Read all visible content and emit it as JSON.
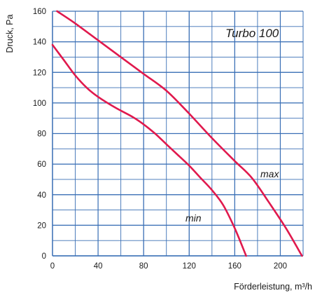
{
  "chart_data": {
    "type": "line",
    "title": "Turbo 100",
    "xlabel": "Förderleistung, m³/h",
    "ylabel": "Druck, Pa",
    "xlim": [
      0,
      220
    ],
    "ylim": [
      0,
      160
    ],
    "x_ticks": [
      0,
      40,
      80,
      120,
      160,
      200
    ],
    "y_ticks": [
      0,
      20,
      40,
      60,
      80,
      100,
      120,
      140,
      160
    ],
    "grid": true,
    "x_minor_step": 20,
    "y_minor_step": 10,
    "line_color": "#e0194d",
    "grid_color": "#3a6fb5",
    "series": [
      {
        "name": "max",
        "x": [
          4,
          20,
          40,
          60,
          80,
          100,
          120,
          140,
          160,
          175,
          190,
          205,
          219
        ],
        "y": [
          160,
          152,
          141,
          130,
          119,
          108,
          93,
          77,
          62,
          51,
          35,
          18,
          0
        ]
      },
      {
        "name": "min",
        "x": [
          0,
          10,
          20,
          30,
          40,
          55,
          70,
          80,
          90,
          100,
          110,
          120,
          130,
          140,
          150,
          160,
          170
        ],
        "y": [
          138,
          128,
          118,
          110,
          104,
          97,
          91,
          86,
          80,
          73,
          66,
          59,
          51,
          43,
          33,
          18,
          0
        ]
      }
    ]
  }
}
